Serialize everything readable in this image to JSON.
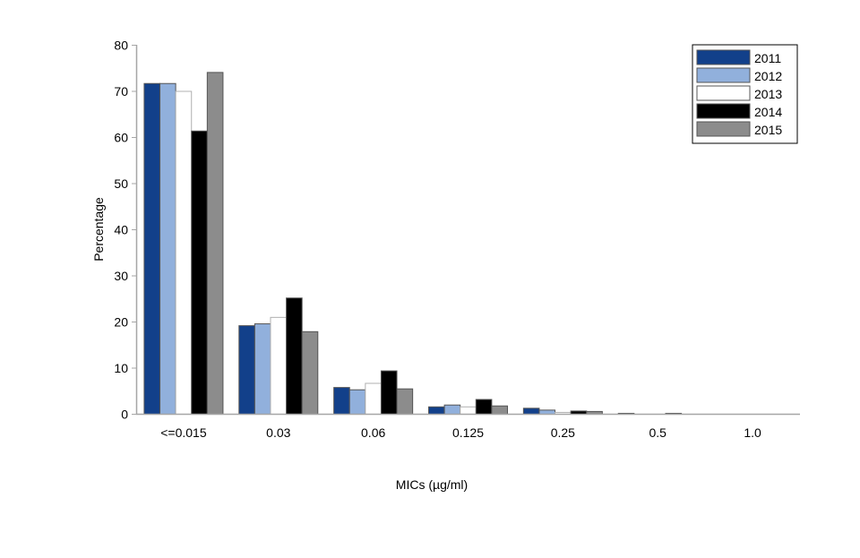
{
  "chart_data": {
    "type": "bar",
    "title": "",
    "xlabel": "MICs (µg/ml)",
    "ylabel": "Percentage",
    "ylim": [
      0,
      80
    ],
    "yticks": [
      0,
      10,
      20,
      30,
      40,
      50,
      60,
      70,
      80
    ],
    "grid": false,
    "legend_position": "top-right",
    "categories": [
      "<=0.015",
      "0.03",
      "0.06",
      "0.125",
      "0.25",
      "0.5",
      "1.0"
    ],
    "series": [
      {
        "name": "2011",
        "color": "#12408a",
        "values": [
          71.7,
          19.2,
          5.8,
          1.6,
          1.3,
          0.2,
          0
        ]
      },
      {
        "name": "2012",
        "color": "#91b0dc",
        "values": [
          71.7,
          19.6,
          5.3,
          2.0,
          0.9,
          0,
          0
        ]
      },
      {
        "name": "2013",
        "color": "#ffffff",
        "values": [
          70.0,
          21.0,
          6.7,
          1.6,
          0.4,
          0,
          0
        ]
      },
      {
        "name": "2014",
        "color": "#000000",
        "values": [
          61.4,
          25.2,
          9.4,
          3.2,
          0.7,
          0.2,
          0
        ]
      },
      {
        "name": "2015",
        "color": "#8c8c8c",
        "values": [
          74.1,
          17.9,
          5.5,
          1.8,
          0.6,
          0,
          0
        ]
      }
    ]
  }
}
